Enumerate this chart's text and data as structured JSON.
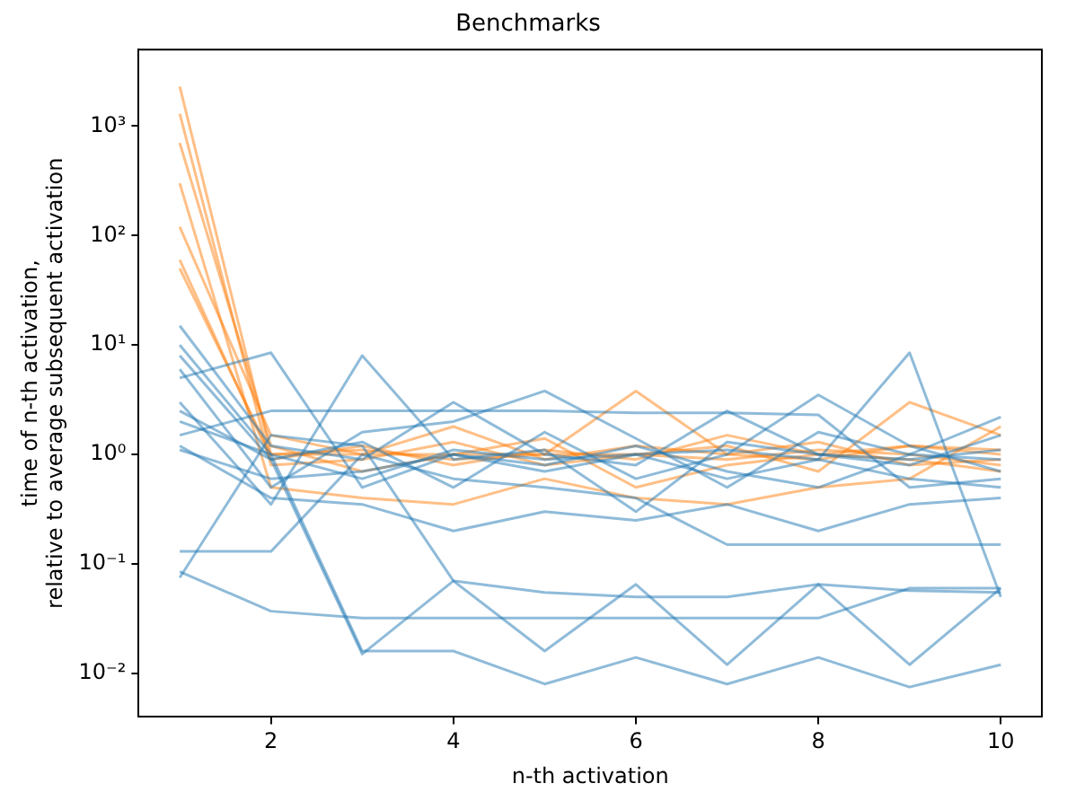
{
  "chart_data": {
    "type": "line",
    "title": "Benchmarks",
    "xlabel": "n-th activation",
    "ylabel": "time of n-th activation,\nrelative to average subsequent activation",
    "x": [
      1,
      2,
      3,
      4,
      5,
      6,
      7,
      8,
      9,
      10
    ],
    "log": "y",
    "grid": false,
    "legend": false,
    "marker": "none",
    "line_style": "solid",
    "xlim": [
      0.55,
      10.45
    ],
    "xticks": [
      2,
      4,
      6,
      8,
      10
    ],
    "ylim": [
      0.004,
      5000
    ],
    "yticks": [
      {
        "value": 0.01,
        "label": "10⁻²"
      },
      {
        "value": 0.1,
        "label": "10⁻¹"
      },
      {
        "value": 1,
        "label": "10⁰"
      },
      {
        "value": 10,
        "label": "10¹"
      },
      {
        "value": 100,
        "label": "10²"
      },
      {
        "value": 1000,
        "label": "10³"
      }
    ],
    "series": [
      {
        "color": "#1f77b4",
        "values": [
          15,
          1.2,
          0.9,
          3.0,
          1.0,
          0.8,
          2.5,
          1.0,
          0.9,
          1.1
        ]
      },
      {
        "color": "#1f77b4",
        "values": [
          8,
          0.9,
          1.3,
          0.5,
          1.6,
          0.6,
          1.0,
          3.5,
          1.2,
          0.7
        ]
      },
      {
        "color": "#1f77b4",
        "values": [
          5,
          8.5,
          0.5,
          1.0,
          0.8,
          1.2,
          0.7,
          0.5,
          1.0,
          2.2
        ]
      },
      {
        "color": "#1f77b4",
        "values": [
          3,
          0.35,
          8.0,
          0.9,
          1.1,
          0.3,
          1.3,
          1.0,
          0.8,
          1.5
        ]
      },
      {
        "color": "#1f77b4",
        "values": [
          2,
          1.0,
          0.016,
          0.016,
          0.008,
          0.014,
          0.008,
          0.014,
          0.0075,
          0.012
        ]
      },
      {
        "color": "#1f77b4",
        "values": [
          1.5,
          2.5,
          2.5,
          2.5,
          2.5,
          2.4,
          2.4,
          2.3,
          0.5,
          0.6
        ]
      },
      {
        "color": "#1f77b4",
        "values": [
          1.2,
          0.4,
          0.35,
          0.2,
          0.3,
          0.25,
          0.35,
          0.2,
          0.35,
          0.4
        ]
      },
      {
        "color": "#1f77b4",
        "values": [
          0.13,
          0.13,
          1.0,
          0.6,
          0.5,
          0.4,
          0.15,
          0.15,
          0.15,
          0.15
        ]
      },
      {
        "color": "#1f77b4",
        "values": [
          0.085,
          0.037,
          0.032,
          0.032,
          0.032,
          0.032,
          0.032,
          0.032,
          0.06,
          0.06
        ]
      },
      {
        "color": "#1f77b4",
        "values": [
          0.075,
          1.5,
          1.2,
          0.07,
          0.055,
          0.05,
          0.05,
          0.065,
          0.057,
          0.055
        ]
      },
      {
        "color": "#1f77b4",
        "values": [
          2.5,
          0.9,
          0.015,
          0.07,
          0.016,
          0.065,
          0.012,
          0.065,
          0.012,
          0.06
        ]
      },
      {
        "color": "#1f77b4",
        "values": [
          10,
          1.0,
          0.6,
          1.1,
          0.9,
          1.0,
          1.1,
          0.9,
          8.5,
          0.05
        ]
      },
      {
        "color": "#1f77b4",
        "values": [
          6,
          0.5,
          1.6,
          2.0,
          3.8,
          1.4,
          0.5,
          1.6,
          1.0,
          0.9
        ]
      },
      {
        "color": "#1f77b4",
        "values": [
          1.1,
          0.6,
          0.7,
          1.0,
          0.7,
          1.0,
          0.6,
          0.9,
          0.6,
          0.5
        ]
      },
      {
        "color": "#ff7f0e",
        "values": [
          2300,
          1.0,
          1.1,
          0.9,
          1.0,
          3.8,
          1.0,
          0.9,
          1.2,
          1.0
        ]
      },
      {
        "color": "#ff7f0e",
        "values": [
          1300,
          0.8,
          0.9,
          1.3,
          0.8,
          1.0,
          1.2,
          0.7,
          3.0,
          1.5
        ]
      },
      {
        "color": "#ff7f0e",
        "values": [
          700,
          1.2,
          0.7,
          1.0,
          1.4,
          0.5,
          0.8,
          1.0,
          0.9,
          0.7
        ]
      },
      {
        "color": "#ff7f0e",
        "values": [
          300,
          0.5,
          0.4,
          0.35,
          0.6,
          0.4,
          0.35,
          0.5,
          0.6,
          1.8
        ]
      },
      {
        "color": "#ff7f0e",
        "values": [
          120,
          1.5,
          1.0,
          1.8,
          0.9,
          1.2,
          1.0,
          1.3,
          0.8,
          0.9
        ]
      },
      {
        "color": "#ff7f0e",
        "values": [
          60,
          0.9,
          1.2,
          0.8,
          1.1,
          0.9,
          1.5,
          1.0,
          1.2,
          1.1
        ]
      },
      {
        "color": "#ff7f0e",
        "values": [
          50,
          1.0,
          1.0,
          1.0,
          1.0,
          1.0,
          0.9,
          1.1,
          1.0,
          0.8
        ]
      }
    ]
  }
}
